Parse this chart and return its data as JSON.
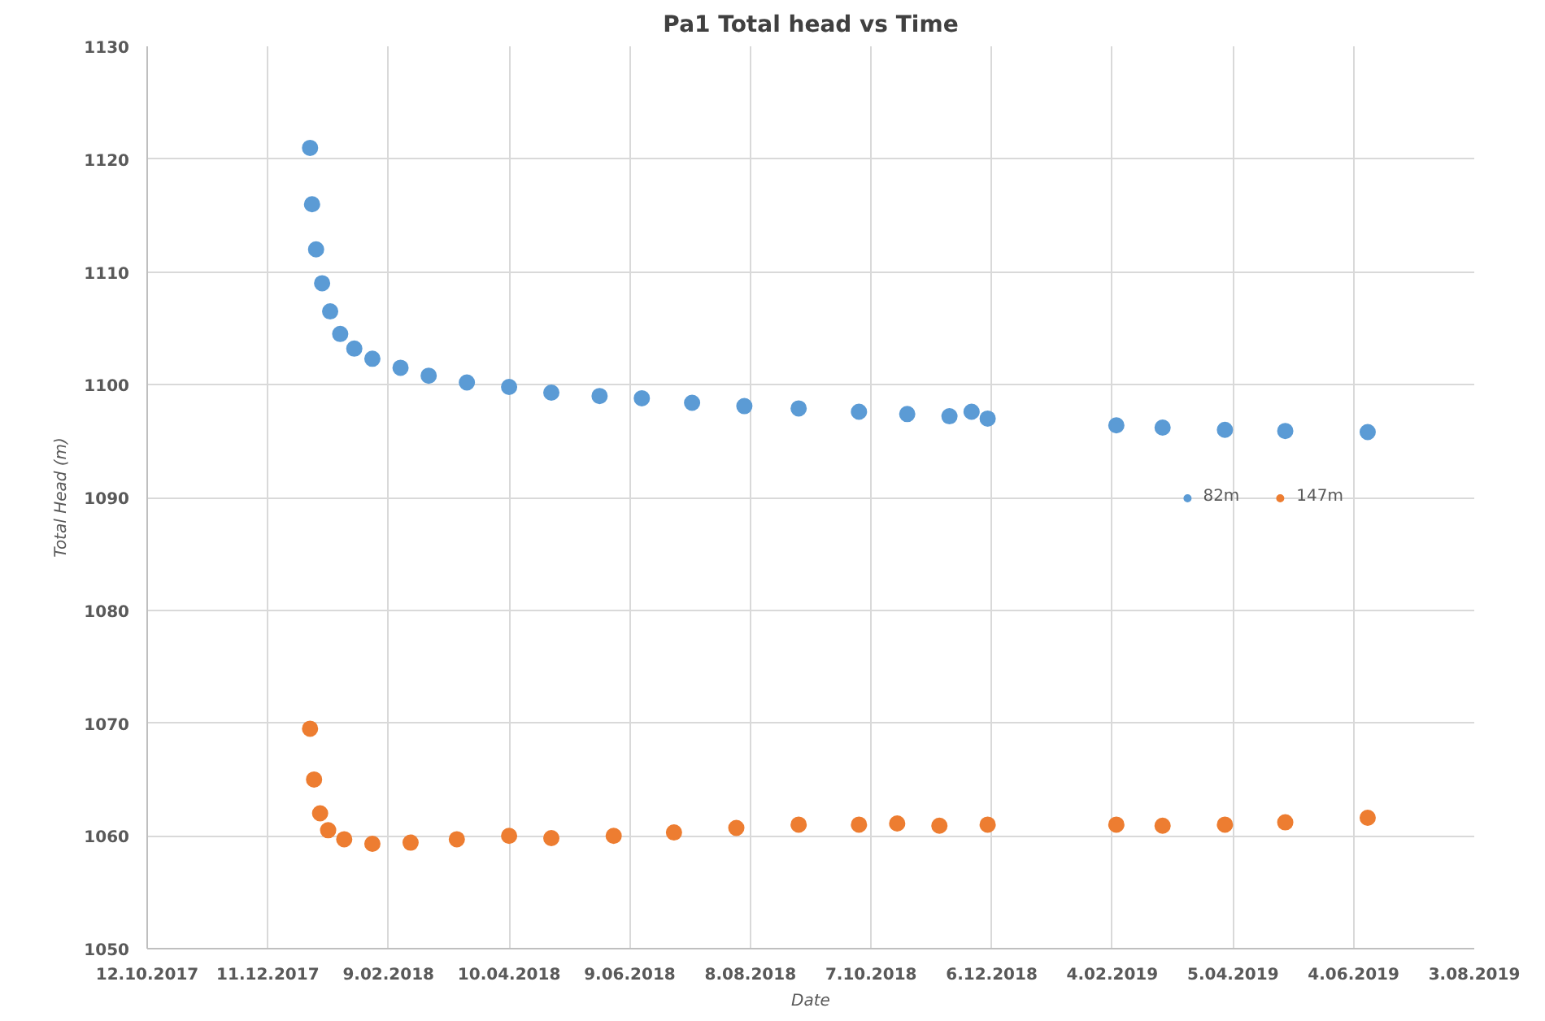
{
  "chart_data": {
    "type": "scatter",
    "title": "Pa1 Total head vs Time",
    "xlabel": "Date",
    "ylabel": "Total Head (m)",
    "xlim": [
      "2017-10-12",
      "2019-08-03"
    ],
    "xticks": [
      {
        "value": "2017-10-12",
        "label": "12.10.2017"
      },
      {
        "value": "2017-12-11",
        "label": "11.12.2017"
      },
      {
        "value": "2018-02-09",
        "label": "9.02.2018"
      },
      {
        "value": "2018-04-10",
        "label": "10.04.2018"
      },
      {
        "value": "2018-06-09",
        "label": "9.06.2018"
      },
      {
        "value": "2018-08-08",
        "label": "8.08.2018"
      },
      {
        "value": "2018-10-07",
        "label": "7.10.2018"
      },
      {
        "value": "2018-12-06",
        "label": "6.12.2018"
      },
      {
        "value": "2019-02-04",
        "label": "4.02.2019"
      },
      {
        "value": "2019-04-05",
        "label": "5.04.2019"
      },
      {
        "value": "2019-06-04",
        "label": "4.06.2019"
      },
      {
        "value": "2019-08-03",
        "label": "3.08.2019"
      }
    ],
    "ylim": [
      1050,
      1130
    ],
    "yticks": [
      1050,
      1060,
      1070,
      1080,
      1090,
      1100,
      1110,
      1120,
      1130
    ],
    "grid": true,
    "legend": "right",
    "marker": "circle",
    "series": [
      {
        "name": "82m",
        "color": "#5b9bd5",
        "x": [
          "2018-01-01",
          "2018-01-02",
          "2018-01-04",
          "2018-01-07",
          "2018-01-11",
          "2018-01-16",
          "2018-01-23",
          "2018-02-01",
          "2018-02-15",
          "2018-03-01",
          "2018-03-20",
          "2018-04-10",
          "2018-05-01",
          "2018-05-25",
          "2018-06-15",
          "2018-07-10",
          "2018-08-05",
          "2018-09-01",
          "2018-10-01",
          "2018-10-25",
          "2018-11-15",
          "2018-11-26",
          "2018-12-04",
          "2019-02-06",
          "2019-03-01",
          "2019-04-01",
          "2019-05-01",
          "2019-06-11"
        ],
        "values": [
          1121,
          1116,
          1112,
          1109,
          1106.5,
          1104.5,
          1103.2,
          1102.3,
          1101.5,
          1100.8,
          1100.2,
          1099.8,
          1099.3,
          1099.0,
          1098.8,
          1098.4,
          1098.1,
          1097.9,
          1097.6,
          1097.4,
          1097.2,
          1097.6,
          1097.0,
          1096.4,
          1096.2,
          1096.0,
          1095.9,
          1095.8
        ]
      },
      {
        "name": "147m",
        "color": "#ed7d31",
        "x": [
          "2018-01-01",
          "2018-01-03",
          "2018-01-06",
          "2018-01-10",
          "2018-01-18",
          "2018-02-01",
          "2018-02-20",
          "2018-03-15",
          "2018-04-10",
          "2018-05-01",
          "2018-06-01",
          "2018-07-01",
          "2018-08-01",
          "2018-09-01",
          "2018-10-01",
          "2018-10-20",
          "2018-11-10",
          "2018-12-04",
          "2019-02-06",
          "2019-03-01",
          "2019-04-01",
          "2019-05-01",
          "2019-06-11"
        ],
        "values": [
          1069.5,
          1065,
          1062,
          1060.5,
          1059.7,
          1059.3,
          1059.4,
          1059.7,
          1060.0,
          1059.8,
          1060.0,
          1060.3,
          1060.7,
          1061.0,
          1061.0,
          1061.1,
          1060.9,
          1061.0,
          1061.0,
          1060.9,
          1061.0,
          1061.2,
          1061.6
        ]
      }
    ]
  }
}
